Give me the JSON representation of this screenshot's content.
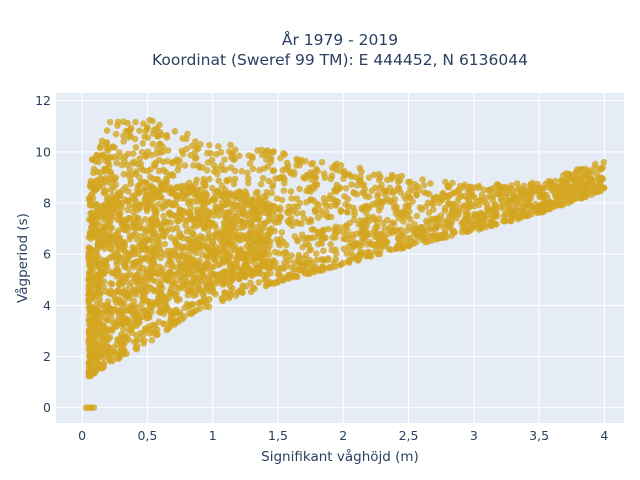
{
  "chart_data": {
    "type": "scatter",
    "title_line1": "År 1979 - 2019",
    "title_line2": "Koordinat (Sweref 99 TM): E 444452, N 6136044",
    "xlabel": "Signifikant våghöjd (m)",
    "ylabel": "Vågperiod (s)",
    "xlim": [
      -0.2,
      4.15
    ],
    "ylim": [
      -0.6,
      12.3
    ],
    "x_ticks": [
      0,
      0.5,
      1,
      1.5,
      2,
      2.5,
      3,
      3.5,
      4
    ],
    "x_tick_labels": [
      "0",
      "0,5",
      "1",
      "1,5",
      "2",
      "2,5",
      "3",
      "3,5",
      "4"
    ],
    "y_ticks": [
      0,
      2,
      4,
      6,
      8,
      10,
      12
    ],
    "y_tick_labels": [
      "0",
      "2",
      "4",
      "6",
      "8",
      "10",
      "12"
    ],
    "grid": true,
    "plot_bgcolor": "#e5ecf6",
    "marker_color": "#d4a520",
    "envelope": [
      {
        "x": 0.05,
        "lower": 1.2,
        "upper": 9.5
      },
      {
        "x": 0.2,
        "lower": 1.7,
        "upper": 11.2
      },
      {
        "x": 0.5,
        "lower": 2.5,
        "upper": 11.3
      },
      {
        "x": 0.75,
        "lower": 3.4,
        "upper": 11.0
      },
      {
        "x": 1.0,
        "lower": 4.0,
        "upper": 10.4
      },
      {
        "x": 1.5,
        "lower": 4.9,
        "upper": 10.0
      },
      {
        "x": 2.0,
        "lower": 5.6,
        "upper": 9.5
      },
      {
        "x": 2.5,
        "lower": 6.3,
        "upper": 9.0
      },
      {
        "x": 3.0,
        "lower": 6.9,
        "upper": 8.7
      },
      {
        "x": 3.5,
        "lower": 7.6,
        "upper": 8.8
      },
      {
        "x": 4.0,
        "lower": 8.5,
        "upper": 9.7
      }
    ],
    "zero_period_points": {
      "x": [
        0.03,
        0.05,
        0.07,
        0.09
      ],
      "y": 0
    }
  }
}
